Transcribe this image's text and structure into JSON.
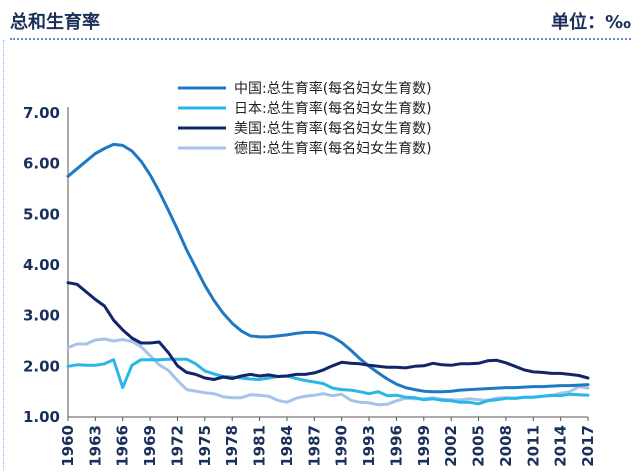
{
  "header": {
    "title": "总和生育率",
    "unit": "单位：‰"
  },
  "colors": {
    "china": "#1f78c4",
    "japan": "#29b6e8",
    "usa": "#14246b",
    "germany": "#a6c3ea"
  },
  "chart_data": {
    "type": "line",
    "title": "总和生育率",
    "unit_label": "单位：‰",
    "ylim": [
      1.0,
      7.0
    ],
    "yticks": [
      "1.00",
      "2.00",
      "3.00",
      "4.00",
      "5.00",
      "6.00",
      "7.00"
    ],
    "xticks": [
      "1960",
      "1963",
      "1966",
      "1969",
      "1972",
      "1975",
      "1978",
      "1981",
      "1984",
      "1987",
      "1990",
      "1993",
      "1996",
      "1999",
      "2002",
      "2005",
      "2008",
      "2011",
      "2014",
      "2017"
    ],
    "x": [
      1960,
      1961,
      1962,
      1963,
      1964,
      1965,
      1966,
      1967,
      1968,
      1969,
      1970,
      1971,
      1972,
      1973,
      1974,
      1975,
      1976,
      1977,
      1978,
      1979,
      1980,
      1981,
      1982,
      1983,
      1984,
      1985,
      1986,
      1987,
      1988,
      1989,
      1990,
      1991,
      1992,
      1993,
      1994,
      1995,
      1996,
      1997,
      1998,
      1999,
      2000,
      2001,
      2002,
      2003,
      2004,
      2005,
      2006,
      2007,
      2008,
      2009,
      2010,
      2011,
      2012,
      2013,
      2014,
      2015,
      2016,
      2017
    ],
    "series": [
      {
        "name": "中国:总生育率(每名妇女生育数)",
        "color_key": "china",
        "values": [
          5.75,
          5.9,
          6.05,
          6.2,
          6.3,
          6.38,
          6.36,
          6.25,
          6.05,
          5.78,
          5.45,
          5.08,
          4.7,
          4.3,
          3.95,
          3.6,
          3.3,
          3.05,
          2.85,
          2.7,
          2.6,
          2.58,
          2.58,
          2.6,
          2.62,
          2.65,
          2.67,
          2.67,
          2.65,
          2.58,
          2.47,
          2.32,
          2.15,
          2.0,
          1.87,
          1.75,
          1.65,
          1.58,
          1.54,
          1.51,
          1.5,
          1.5,
          1.51,
          1.53,
          1.54,
          1.55,
          1.56,
          1.57,
          1.58,
          1.58,
          1.59,
          1.6,
          1.6,
          1.61,
          1.62,
          1.62,
          1.63,
          1.64
        ]
      },
      {
        "name": "日本:总生育率(每名妇女生育数)",
        "color_key": "japan",
        "values": [
          2.0,
          2.03,
          2.02,
          2.02,
          2.05,
          2.13,
          1.58,
          2.02,
          2.13,
          2.13,
          2.13,
          2.14,
          2.14,
          2.14,
          2.05,
          1.91,
          1.85,
          1.8,
          1.79,
          1.77,
          1.75,
          1.74,
          1.77,
          1.8,
          1.81,
          1.76,
          1.72,
          1.69,
          1.66,
          1.57,
          1.54,
          1.53,
          1.5,
          1.46,
          1.5,
          1.42,
          1.43,
          1.39,
          1.38,
          1.34,
          1.36,
          1.33,
          1.32,
          1.29,
          1.29,
          1.26,
          1.32,
          1.34,
          1.37,
          1.37,
          1.39,
          1.39,
          1.41,
          1.43,
          1.42,
          1.45,
          1.44,
          1.43
        ]
      },
      {
        "name": "美国:总生育率(每名妇女生育数)",
        "color_key": "usa",
        "values": [
          3.65,
          3.62,
          3.47,
          3.32,
          3.19,
          2.91,
          2.72,
          2.56,
          2.46,
          2.46,
          2.48,
          2.27,
          2.01,
          1.88,
          1.84,
          1.77,
          1.74,
          1.79,
          1.76,
          1.81,
          1.84,
          1.81,
          1.83,
          1.8,
          1.81,
          1.84,
          1.84,
          1.87,
          1.93,
          2.01,
          2.08,
          2.06,
          2.05,
          2.02,
          2.0,
          1.98,
          1.98,
          1.97,
          2.0,
          2.01,
          2.06,
          2.03,
          2.02,
          2.05,
          2.05,
          2.06,
          2.11,
          2.12,
          2.07,
          2.0,
          1.93,
          1.89,
          1.88,
          1.86,
          1.86,
          1.84,
          1.82,
          1.77
        ]
      },
      {
        "name": "德国:总生育率(每名妇女生育数)",
        "color_key": "germany",
        "values": [
          2.37,
          2.44,
          2.44,
          2.52,
          2.54,
          2.5,
          2.53,
          2.49,
          2.39,
          2.21,
          2.03,
          1.92,
          1.72,
          1.54,
          1.51,
          1.48,
          1.46,
          1.4,
          1.38,
          1.38,
          1.44,
          1.43,
          1.41,
          1.33,
          1.29,
          1.37,
          1.41,
          1.43,
          1.46,
          1.42,
          1.45,
          1.33,
          1.29,
          1.28,
          1.24,
          1.25,
          1.32,
          1.37,
          1.36,
          1.36,
          1.38,
          1.35,
          1.34,
          1.34,
          1.36,
          1.34,
          1.33,
          1.37,
          1.38,
          1.36,
          1.39,
          1.39,
          1.41,
          1.42,
          1.47,
          1.5,
          1.6,
          1.57
        ]
      }
    ],
    "legend_position": "top-right",
    "grid": false
  }
}
